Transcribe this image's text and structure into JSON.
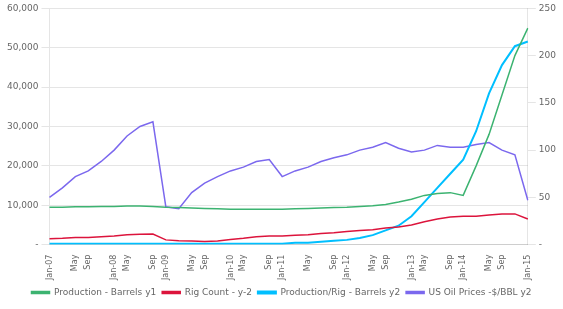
{
  "chart_data": {
    "type": "line",
    "categories": [
      "Jan-07",
      null,
      "May",
      "Sep",
      null,
      "Jan-08",
      "May",
      null,
      "Sep",
      "Jan-09",
      null,
      "May",
      "Sep",
      null,
      "Jan-10",
      "May",
      null,
      "Sep",
      "Jan-11",
      null,
      "May",
      null,
      "Sep",
      "Jan-12",
      null,
      "May",
      "Sep",
      null,
      "Jan-13",
      "May",
      null,
      "Sep",
      "Jan-14",
      null,
      "May",
      "Sep",
      null,
      "Jan-15"
    ],
    "series": [
      {
        "name": "Production - Barrels y1",
        "color": "#3CB371",
        "axis": "y1",
        "values": [
          9500,
          9500,
          9600,
          9600,
          9700,
          9700,
          9800,
          9800,
          9700,
          9500,
          9400,
          9300,
          9200,
          9100,
          9000,
          9000,
          9000,
          9000,
          9000,
          9100,
          9200,
          9300,
          9400,
          9500,
          9700,
          9900,
          10200,
          10800,
          11500,
          12500,
          13000,
          13200,
          12500,
          20000,
          28000,
          38000,
          48000,
          55000
        ]
      },
      {
        "name": "Rig Count - y-2",
        "color": "#DC143C",
        "axis": "y1",
        "values": [
          1500,
          1600,
          1800,
          1800,
          2000,
          2200,
          2500,
          2600,
          2700,
          1200,
          1000,
          900,
          800,
          900,
          1300,
          1600,
          2000,
          2200,
          2200,
          2400,
          2500,
          2800,
          3000,
          3300,
          3600,
          3800,
          4200,
          4500,
          5000,
          5800,
          6500,
          7000,
          7200,
          7200,
          7500,
          7800,
          7800,
          6500
        ]
      },
      {
        "name": "Production/Rig - Barrels y2",
        "color": "#00BFFF",
        "axis": "y2",
        "values": [
          1,
          1,
          1,
          1,
          1,
          1,
          1,
          1,
          1,
          1,
          1,
          1,
          1,
          1,
          1,
          1,
          1,
          1,
          1,
          2,
          2,
          3,
          4,
          5,
          7,
          10,
          15,
          20,
          30,
          45,
          60,
          75,
          90,
          120,
          160,
          190,
          210,
          215
        ]
      },
      {
        "name": "US Oil Prices -$/BBL y2",
        "color": "#7B68EE",
        "axis": "y2",
        "values": [
          50,
          60,
          72,
          78,
          88,
          100,
          115,
          125,
          130,
          40,
          38,
          55,
          65,
          72,
          78,
          82,
          88,
          90,
          72,
          78,
          82,
          88,
          92,
          95,
          100,
          103,
          108,
          102,
          98,
          100,
          105,
          103,
          103,
          106,
          108,
          100,
          95,
          47
        ]
      }
    ],
    "ylim": [
      0,
      60000
    ],
    "yticks": [
      {
        "value": 0,
        "label": "-"
      },
      {
        "value": 10000,
        "label": "10,000"
      },
      {
        "value": 20000,
        "label": "20,000"
      },
      {
        "value": 30000,
        "label": "30,000"
      },
      {
        "value": 40000,
        "label": "40,000"
      },
      {
        "value": 50000,
        "label": "50,000"
      },
      {
        "value": 60000,
        "label": "60,000"
      }
    ],
    "y2lim": [
      0,
      250
    ],
    "y2ticks": [
      {
        "value": 0,
        "label": "-"
      },
      50,
      100,
      150,
      200,
      250
    ],
    "grid": true,
    "legend": "bottom"
  }
}
